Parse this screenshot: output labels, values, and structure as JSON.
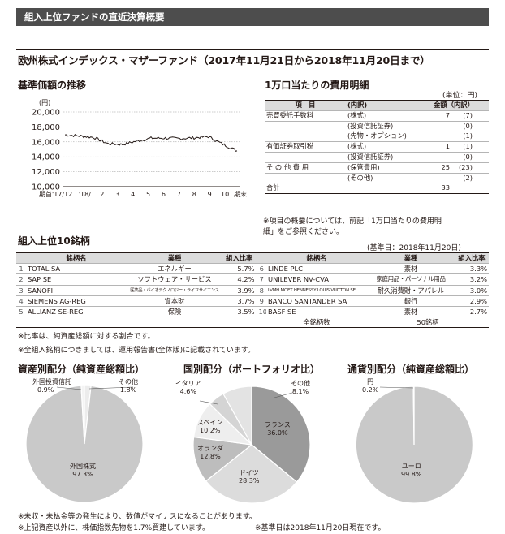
{
  "header": {
    "title": "組入上位ファンドの直近決算概要"
  },
  "fund_title": "欧州株式インデックス・マザーファンド（2017年11月21日から2018年11月20日まで）",
  "nav_chart": {
    "title": "基準価額の推移",
    "unit": "(円)",
    "y_ticks": [
      "20,000",
      "18,000",
      "16,000",
      "14,000",
      "12,000",
      "10,000"
    ],
    "x_ticks": [
      "期首'17/12",
      "'18/1",
      "2",
      "3",
      "4",
      "5",
      "6",
      "7",
      "8",
      "9",
      "10",
      "期末"
    ],
    "chart_data": {
      "type": "line",
      "ylim": [
        10000,
        20000
      ],
      "x": [
        "期首",
        "'17/12",
        "'18/1",
        "2",
        "3",
        "4",
        "5",
        "6",
        "7",
        "8",
        "9",
        "10",
        "期末"
      ],
      "values": [
        16950,
        16800,
        16600,
        15750,
        15650,
        16100,
        16500,
        16500,
        16450,
        16550,
        16700,
        15700,
        14800
      ]
    }
  },
  "cost": {
    "title": "1万口当たりの費用明細",
    "unit_note": "(単位：円)",
    "headers": [
      "項　目",
      "(内訳)",
      "金額（内訳）"
    ],
    "rows": [
      {
        "item": "売買委託手数料",
        "sub": "(株式)",
        "amount": "7",
        "detail": "(7)"
      },
      {
        "item": "",
        "sub": "(投資信託証券)",
        "amount": "",
        "detail": "(0)"
      },
      {
        "item": "",
        "sub": "(先物・オプション)",
        "amount": "",
        "detail": "(1)"
      },
      {
        "item": "有価証券取引税",
        "sub": "(株式)",
        "amount": "1",
        "detail": "(1)"
      },
      {
        "item": "",
        "sub": "(投資信託証券)",
        "amount": "",
        "detail": "(0)"
      },
      {
        "item": "そ の 他 費 用",
        "sub": "(保管費用)",
        "amount": "25",
        "detail": "(23)"
      },
      {
        "item": "",
        "sub": "(その他)",
        "amount": "",
        "detail": "(2)"
      },
      {
        "item": "合計",
        "sub": "",
        "amount": "33",
        "detail": ""
      }
    ],
    "note_line1": "※項目の概要については、前記「1万口当たりの費用明",
    "note_line2": "細」をご参照ください。"
  },
  "top10": {
    "title": "組入上位10銘柄",
    "base_date": "(基準日：2018年11月20日)",
    "headers": [
      "銘柄名",
      "業種",
      "組入比率"
    ],
    "left": [
      {
        "no": "1",
        "name": "TOTAL SA",
        "industry": "エネルギー",
        "ratio": "5.7%"
      },
      {
        "no": "2",
        "name": "SAP SE",
        "industry": "ソフトウェア・サービス",
        "ratio": "4.2%"
      },
      {
        "no": "3",
        "name": "SANOFI",
        "industry": "医薬品・バイオテクノロジー・ライフサイエンス",
        "ratio": "3.9%"
      },
      {
        "no": "4",
        "name": "SIEMENS AG-REG",
        "industry": "資本財",
        "ratio": "3.7%"
      },
      {
        "no": "5",
        "name": "ALLIANZ SE-REG",
        "industry": "保険",
        "ratio": "3.5%"
      }
    ],
    "right": [
      {
        "no": "6",
        "name": "LINDE PLC",
        "industry": "素材",
        "ratio": "3.3%"
      },
      {
        "no": "7",
        "name": "UNILEVER NV-CVA",
        "industry": "家庭用品・パーソナル用品",
        "ratio": "3.2%"
      },
      {
        "no": "8",
        "name": "LVMH MOET HENNESSY LOUIS VUITTON SE",
        "industry": "耐久消費財・アパレル",
        "ratio": "3.0%"
      },
      {
        "no": "9",
        "name": "BANCO SANTANDER SA",
        "industry": "銀行",
        "ratio": "2.9%"
      },
      {
        "no": "10",
        "name": "BASF SE",
        "industry": "素材",
        "ratio": "2.7%"
      }
    ],
    "total_label": "全銘柄数",
    "total_value": "50銘柄",
    "note1": "※比率は、純資産総額に対する割合です。",
    "note2": "※全組入銘柄につきましては、運用報告書(全体版)に記載されています。"
  },
  "asset_pie": {
    "title": "資産別配分（純資産総額比）",
    "chart_data": {
      "type": "pie",
      "slices": [
        {
          "name": "外国株式",
          "value": 97.3,
          "label": "97.3%"
        },
        {
          "name": "外国投資信託",
          "value": 0.9,
          "label": "0.9%"
        },
        {
          "name": "その他",
          "value": 1.8,
          "label": "1.8%"
        }
      ]
    }
  },
  "country_pie": {
    "title": "国別配分（ポートフォリオ比）",
    "chart_data": {
      "type": "pie",
      "slices": [
        {
          "name": "フランス",
          "value": 36.0,
          "label": "36.0%"
        },
        {
          "name": "ドイツ",
          "value": 28.3,
          "label": "28.3%"
        },
        {
          "name": "オランダ",
          "value": 12.8,
          "label": "12.8%"
        },
        {
          "name": "スペイン",
          "value": 10.2,
          "label": "10.2%"
        },
        {
          "name": "イタリア",
          "value": 4.6,
          "label": "4.6%"
        },
        {
          "name": "その他",
          "value": 8.1,
          "label": "8.1%"
        }
      ]
    }
  },
  "currency_pie": {
    "title": "通貨別配分（純資産総額比）",
    "chart_data": {
      "type": "pie",
      "slices": [
        {
          "name": "ユーロ",
          "value": 99.8,
          "label": "99.8%"
        },
        {
          "name": "円",
          "value": 0.2,
          "label": "0.2%"
        }
      ]
    }
  },
  "footer": {
    "note1": "※未収・未払金等の発生により、数値がマイナスになることがあります。",
    "note2": "※上記資産以外に、株価指数先物を1.7%買建しています。",
    "note3": "※基準日は2018年11月20日現在です。"
  }
}
